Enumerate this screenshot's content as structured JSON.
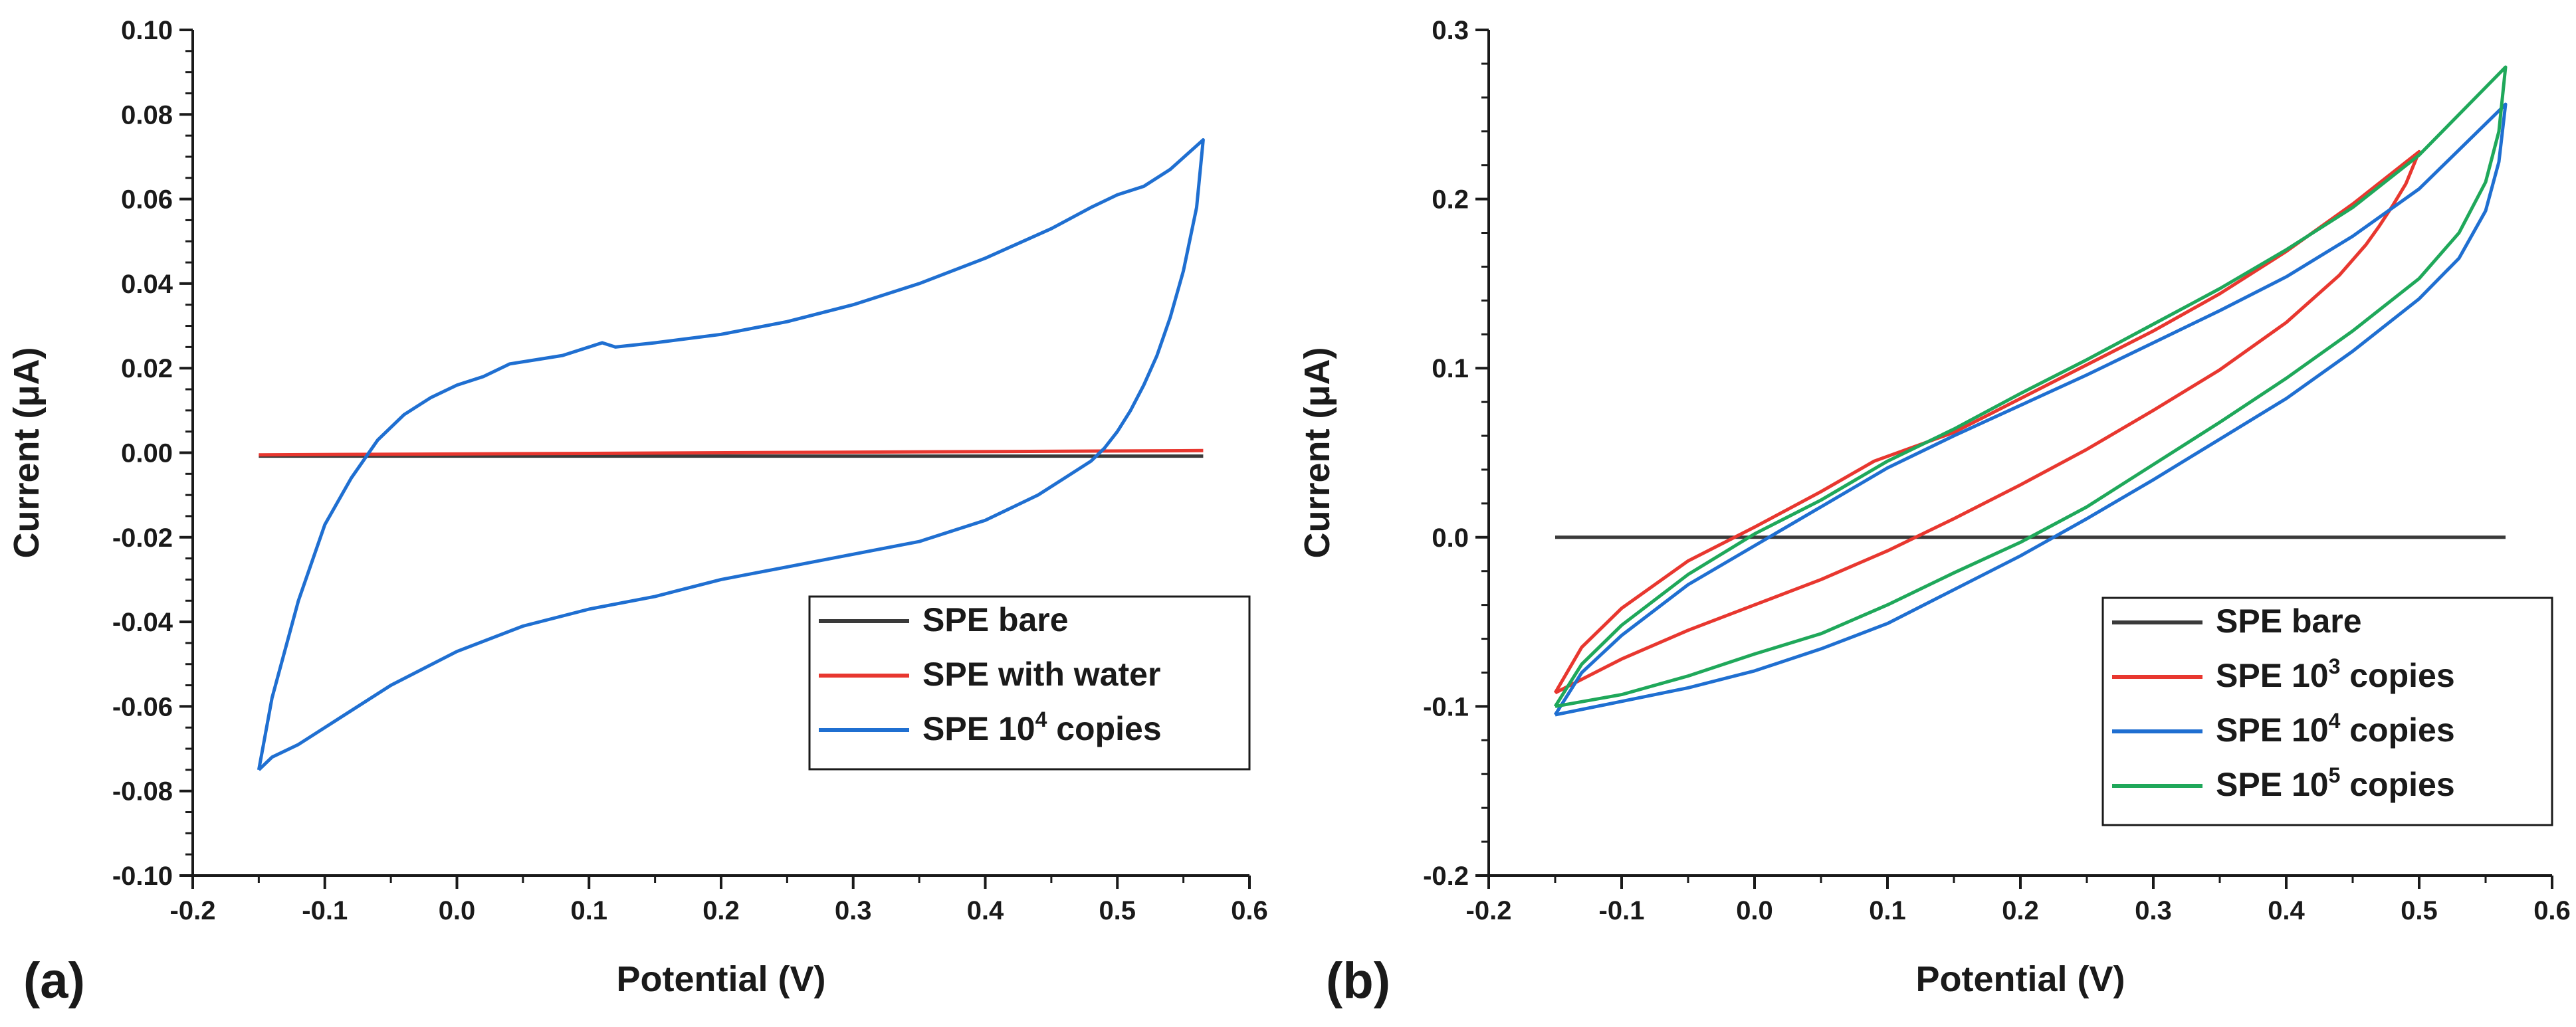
{
  "chart_data": [
    {
      "panel_label": "(a)",
      "type": "line",
      "xlabel": "Potential (V)",
      "ylabel": "Current (μA)",
      "xlim": [
        -0.2,
        0.6
      ],
      "ylim": [
        -0.1,
        0.1
      ],
      "xticks": [
        "-0.2",
        "-0.1",
        "0.0",
        "0.1",
        "0.2",
        "0.3",
        "0.4",
        "0.5",
        "0.6"
      ],
      "yticks": [
        "-0.10",
        "-0.08",
        "-0.06",
        "-0.04",
        "-0.02",
        "0.00",
        "0.02",
        "0.04",
        "0.06",
        "0.08",
        "0.10"
      ],
      "grid": false,
      "legend_position": "bottom-right",
      "series": [
        {
          "name": "SPE bare",
          "legend_base": "SPE bare",
          "legend_sup": "",
          "legend_tail": "",
          "color": "#3a3a3a",
          "x": [
            -0.15,
            0.565
          ],
          "y": [
            -0.0008,
            -0.0008
          ]
        },
        {
          "name": "SPE with water",
          "legend_base": "SPE with water",
          "legend_sup": "",
          "legend_tail": "",
          "color": "#e8372f",
          "x": [
            -0.15,
            0.565
          ],
          "y": [
            -0.0005,
            0.0005
          ]
        },
        {
          "name": "SPE 10^4 copies",
          "legend_base": "SPE 10",
          "legend_sup": "4",
          "legend_tail": " copies",
          "color": "#1f6fd1",
          "x": [
            -0.15,
            -0.14,
            -0.12,
            -0.1,
            -0.08,
            -0.06,
            -0.04,
            -0.02,
            0.0,
            0.02,
            0.04,
            0.06,
            0.08,
            0.1,
            0.11,
            0.12,
            0.15,
            0.2,
            0.25,
            0.3,
            0.35,
            0.4,
            0.45,
            0.48,
            0.5,
            0.52,
            0.54,
            0.565,
            0.56,
            0.55,
            0.54,
            0.53,
            0.52,
            0.51,
            0.5,
            0.49,
            0.48,
            0.46,
            0.44,
            0.42,
            0.4,
            0.35,
            0.3,
            0.25,
            0.2,
            0.15,
            0.1,
            0.05,
            0.0,
            -0.05,
            -0.1,
            -0.12,
            -0.14,
            -0.15
          ],
          "y": [
            -0.075,
            -0.058,
            -0.035,
            -0.017,
            -0.006,
            0.003,
            0.009,
            0.013,
            0.016,
            0.018,
            0.021,
            0.022,
            0.023,
            0.025,
            0.026,
            0.025,
            0.026,
            0.028,
            0.031,
            0.035,
            0.04,
            0.046,
            0.053,
            0.058,
            0.061,
            0.063,
            0.067,
            0.074,
            0.058,
            0.043,
            0.032,
            0.023,
            0.016,
            0.01,
            0.005,
            0.001,
            -0.002,
            -0.006,
            -0.01,
            -0.013,
            -0.016,
            -0.021,
            -0.024,
            -0.027,
            -0.03,
            -0.034,
            -0.037,
            -0.041,
            -0.047,
            -0.055,
            -0.065,
            -0.069,
            -0.072,
            -0.075
          ]
        }
      ]
    },
    {
      "panel_label": "(b)",
      "type": "line",
      "xlabel": "Potential (V)",
      "ylabel": "Current (μA)",
      "xlim": [
        -0.2,
        0.6
      ],
      "ylim": [
        -0.2,
        0.3
      ],
      "xticks": [
        "-0.2",
        "-0.1",
        "0.0",
        "0.1",
        "0.2",
        "0.3",
        "0.4",
        "0.5",
        "0.6"
      ],
      "yticks": [
        "-0.2",
        "-0.1",
        "0.0",
        "0.1",
        "0.2",
        "0.3"
      ],
      "grid": false,
      "legend_position": "bottom-right",
      "series": [
        {
          "name": "SPE bare",
          "legend_base": "SPE bare",
          "legend_sup": "",
          "legend_tail": "",
          "color": "#3a3a3a",
          "x": [
            -0.15,
            0.565
          ],
          "y": [
            0.0,
            0.0
          ]
        },
        {
          "name": "SPE 10^3 copies",
          "legend_base": "SPE 10",
          "legend_sup": "3",
          "legend_tail": " copies",
          "color": "#e8372f",
          "x": [
            -0.15,
            -0.13,
            -0.1,
            -0.05,
            0.0,
            0.05,
            0.09,
            0.15,
            0.2,
            0.25,
            0.3,
            0.35,
            0.4,
            0.45,
            0.5,
            0.49,
            0.48,
            0.47,
            0.46,
            0.44,
            0.4,
            0.35,
            0.3,
            0.25,
            0.2,
            0.15,
            0.1,
            0.05,
            0.0,
            -0.05,
            -0.1,
            -0.15
          ],
          "y": [
            -0.092,
            -0.065,
            -0.042,
            -0.014,
            0.006,
            0.027,
            0.045,
            0.062,
            0.082,
            0.102,
            0.122,
            0.144,
            0.169,
            0.197,
            0.228,
            0.209,
            0.196,
            0.184,
            0.173,
            0.155,
            0.127,
            0.099,
            0.075,
            0.052,
            0.031,
            0.011,
            -0.008,
            -0.025,
            -0.04,
            -0.055,
            -0.072,
            -0.092
          ]
        },
        {
          "name": "SPE 10^4 copies",
          "legend_base": "SPE 10",
          "legend_sup": "4",
          "legend_tail": " copies",
          "color": "#1f6fd1",
          "x": [
            -0.15,
            -0.13,
            -0.1,
            -0.05,
            0.0,
            0.05,
            0.1,
            0.15,
            0.2,
            0.25,
            0.3,
            0.35,
            0.4,
            0.45,
            0.5,
            0.565,
            0.56,
            0.55,
            0.53,
            0.5,
            0.45,
            0.4,
            0.35,
            0.3,
            0.25,
            0.2,
            0.15,
            0.1,
            0.05,
            0.0,
            -0.05,
            -0.1,
            -0.15
          ],
          "y": [
            -0.105,
            -0.08,
            -0.058,
            -0.028,
            -0.005,
            0.018,
            0.041,
            0.06,
            0.078,
            0.096,
            0.115,
            0.134,
            0.154,
            0.178,
            0.206,
            0.256,
            0.222,
            0.193,
            0.165,
            0.141,
            0.11,
            0.082,
            0.058,
            0.034,
            0.011,
            -0.011,
            -0.031,
            -0.051,
            -0.066,
            -0.079,
            -0.089,
            -0.097,
            -0.105
          ]
        },
        {
          "name": "SPE 10^5 copies",
          "legend_base": "SPE 10",
          "legend_sup": "5",
          "legend_tail": " copies",
          "color": "#1fa85a",
          "x": [
            -0.15,
            -0.13,
            -0.1,
            -0.05,
            0.0,
            0.05,
            0.1,
            0.15,
            0.2,
            0.25,
            0.3,
            0.35,
            0.4,
            0.45,
            0.5,
            0.565,
            0.56,
            0.55,
            0.53,
            0.5,
            0.45,
            0.4,
            0.35,
            0.3,
            0.25,
            0.2,
            0.15,
            0.1,
            0.05,
            0.0,
            -0.05,
            -0.1,
            -0.15
          ],
          "y": [
            -0.1,
            -0.075,
            -0.052,
            -0.022,
            0.002,
            0.022,
            0.045,
            0.064,
            0.085,
            0.105,
            0.126,
            0.147,
            0.17,
            0.195,
            0.226,
            0.278,
            0.24,
            0.21,
            0.18,
            0.153,
            0.122,
            0.094,
            0.068,
            0.043,
            0.018,
            -0.003,
            -0.021,
            -0.04,
            -0.057,
            -0.069,
            -0.082,
            -0.093,
            -0.1
          ]
        }
      ]
    }
  ]
}
